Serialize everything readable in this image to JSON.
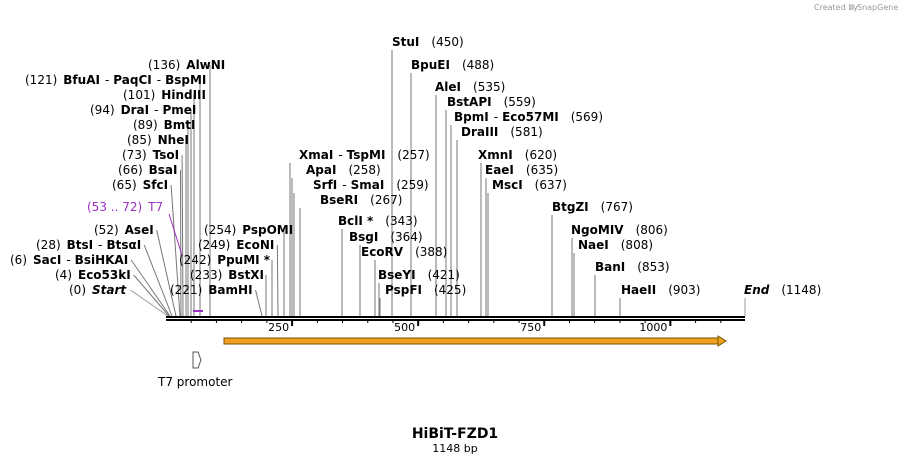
{
  "credit": {
    "created_by": "Created by",
    "app": "SnapGene"
  },
  "title": "HiBiT-FZD1",
  "length_label": "1148 bp",
  "sequence_length": 1148,
  "ticks": [
    "250",
    "500",
    "750",
    "1000"
  ],
  "feature_label": "T7 promoter",
  "primer": {
    "range": "(53 .. 72)",
    "name": "T7"
  },
  "sites": [
    {
      "pos": "(0)",
      "name": "Start",
      "italic": true
    },
    {
      "pos": "(4)",
      "name": "Eco53kI"
    },
    {
      "pos": "(6)",
      "name": "SacI",
      "sep": "-",
      "name2": "BsiHKAI"
    },
    {
      "pos": "(28)",
      "name": "BtsI",
      "sep": "-",
      "name2": "BtsαI"
    },
    {
      "pos": "(52)",
      "name": "AseI"
    },
    {
      "pos": "(65)",
      "name": "SfcI"
    },
    {
      "pos": "(66)",
      "name": "BsaI"
    },
    {
      "pos": "(73)",
      "name": "TsoI"
    },
    {
      "pos": "(85)",
      "name": "NheI"
    },
    {
      "pos": "(89)",
      "name": "BmtI"
    },
    {
      "pos": "(94)",
      "name": "DraI",
      "sep": "-",
      "name2": "PmeI"
    },
    {
      "pos": "(101)",
      "name": "HindIII"
    },
    {
      "pos": "(121)",
      "name": "BfuAI",
      "sep": "-",
      "name2": "PaqCI",
      "sep2": "-",
      "name3": "BspMI"
    },
    {
      "pos": "(136)",
      "name": "AlwNI"
    },
    {
      "pos": "(221)",
      "name": "BamHI"
    },
    {
      "pos": "(233)",
      "name": "BstXI"
    },
    {
      "pos": "(242)",
      "name": "PpuMI *"
    },
    {
      "pos": "(249)",
      "name": "EcoNI"
    },
    {
      "pos": "(254)",
      "name": "PspOMI"
    },
    {
      "pos": "(257)",
      "name": "XmaI",
      "sep": "-",
      "name2": "TspMI"
    },
    {
      "pos": "(258)",
      "name": "ApaI"
    },
    {
      "pos": "(259)",
      "name": "SrfI",
      "sep": "-",
      "name2": "SmaI"
    },
    {
      "pos": "(267)",
      "name": "BseRI"
    },
    {
      "pos": "(343)",
      "name": "BclI *"
    },
    {
      "pos": "(364)",
      "name": "BsgI"
    },
    {
      "pos": "(388)",
      "name": "EcoRV"
    },
    {
      "pos": "(421)",
      "name": "BseYI"
    },
    {
      "pos": "(425)",
      "name": "PspFI"
    },
    {
      "pos": "(450)",
      "name": "StuI"
    },
    {
      "pos": "(488)",
      "name": "BpuEI"
    },
    {
      "pos": "(535)",
      "name": "AleI"
    },
    {
      "pos": "(559)",
      "name": "BstAPI"
    },
    {
      "pos": "(569)",
      "name": "BpmI",
      "sep": "-",
      "name2": "Eco57MI"
    },
    {
      "pos": "(581)",
      "name": "DraIII"
    },
    {
      "pos": "(620)",
      "name": "XmnI"
    },
    {
      "pos": "(635)",
      "name": "EaeI"
    },
    {
      "pos": "(637)",
      "name": "MscI"
    },
    {
      "pos": "(767)",
      "name": "BtgZI"
    },
    {
      "pos": "(806)",
      "name": "NgoMIV"
    },
    {
      "pos": "(808)",
      "name": "NaeI"
    },
    {
      "pos": "(853)",
      "name": "BanI"
    },
    {
      "pos": "(903)",
      "name": "HaeII"
    },
    {
      "pos": "(1148)",
      "name": "End",
      "italic": true
    }
  ],
  "colors": {
    "primer": "#9a2fc4",
    "feature": "#f0a020",
    "line": "#000000",
    "leader": "#777777"
  }
}
